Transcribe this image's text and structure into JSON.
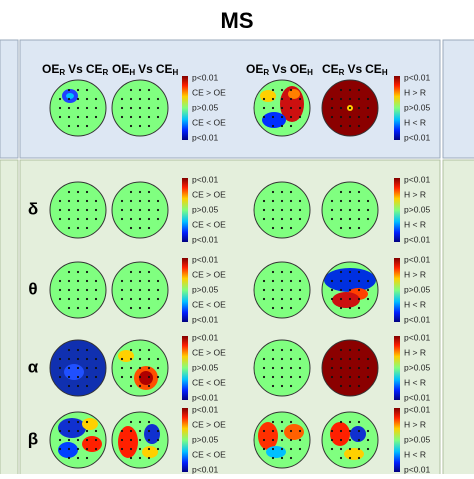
{
  "title": "MS",
  "headers": [
    {
      "a": "OE",
      "a_sub": "R",
      "vs": "Vs",
      "b": "CE",
      "b_sub": "R"
    },
    {
      "a": "OE",
      "a_sub": "H",
      "vs": "Vs",
      "b": "CE",
      "b_sub": "H"
    },
    {
      "a": "OE",
      "a_sub": "R",
      "vs": "Vs",
      "b": "OE",
      "b_sub": "H"
    },
    {
      "a": "CE",
      "a_sub": "R",
      "vs": "Vs",
      "b": "CE",
      "b_sub": "H"
    }
  ],
  "legend_condition": [
    "p<0.01",
    "CE > OE",
    "p>0.05",
    "CE < OE",
    "p<0.01"
  ],
  "legend_group": [
    "p<0.01",
    "H > R",
    "p>0.05",
    "H < R",
    "p<0.01"
  ],
  "bands": [
    "δ",
    "θ",
    "α",
    "β"
  ]
}
